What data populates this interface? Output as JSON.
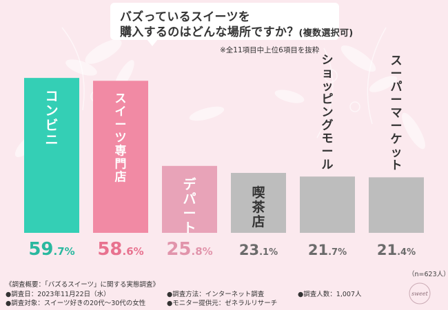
{
  "header": {
    "title_line1": "バズっているスイーツを",
    "title_line2": "購入するのはどんな場所ですか？",
    "title_suffix": "(複数選択可)",
    "note": "※全11項目中上位6項目を抜粋"
  },
  "chart_data": {
    "type": "bar",
    "title": "バズっているスイーツを購入するのはどんな場所ですか？(複数選択可)",
    "categories": [
      "コンビニ",
      "スイーツ専門店",
      "デパート",
      "喫茶店",
      "ショッピングモール",
      "スーパーマーケット"
    ],
    "values": [
      59.7,
      58.6,
      25.8,
      23.1,
      21.7,
      21.4
    ],
    "value_labels": [
      "59.7%",
      "58.6%",
      "25.8%",
      "23.1%",
      "21.7%",
      "21.4%"
    ],
    "unit": "%",
    "ylim": [
      0,
      60
    ],
    "grid": false,
    "legend": "none",
    "colors": [
      "#34cfb5",
      "#f18aa4",
      "#e8a3b8",
      "#bdbdbd",
      "#bdbdbd",
      "#bdbdbd"
    ],
    "value_colors": [
      "#2ab89f",
      "#e8728f",
      "#e194ab",
      "#6b6b6b",
      "#6b6b6b",
      "#6b6b6b"
    ],
    "category_text_colors": [
      "#ffffff",
      "#ffffff",
      "#ffffff",
      "#333333",
      "#333333",
      "#333333"
    ]
  },
  "sample_size": "（n=623人）",
  "footer": {
    "survey_title": "《調査概要：「バズるスイーツ」に関する実態調査》",
    "date": "●調査日：2023年11月22日（水）",
    "target": "●調査対象：スイーツ好きの20代〜30代の女性",
    "method": "●調査方法：インターネット調査",
    "provider": "●モニター提供元：ゼネラルリサーチ",
    "count": "●調査人数：1,007人"
  },
  "logo": {
    "text": "sweet"
  },
  "colors": {
    "background": "#fbe9ee",
    "decoration": "#ffffff"
  }
}
